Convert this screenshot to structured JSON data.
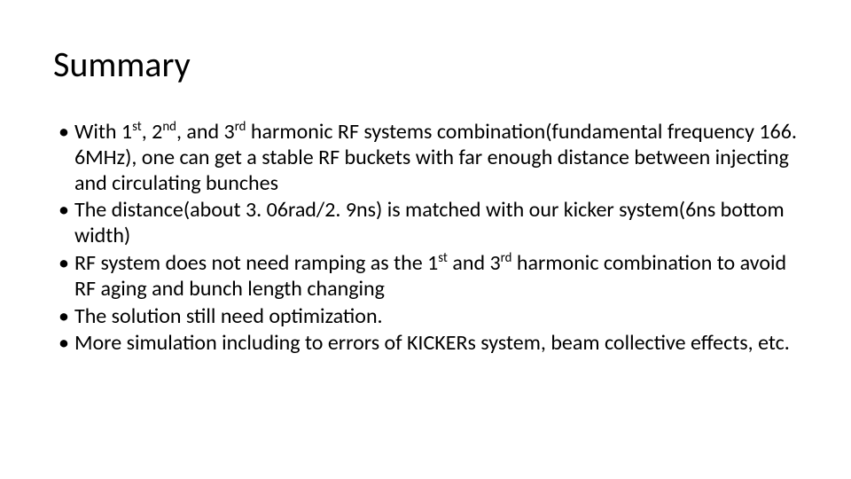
{
  "title": "Summary",
  "bullets": [
    {
      "pre1": "With 1",
      "sup1": "st",
      "mid1": ", 2",
      "sup2": "nd",
      "mid2": ", and 3",
      "sup3": "rd",
      "post": " harmonic RF systems combination(fundamental frequency 166. 6MHz), one can get a stable RF buckets with far enough distance  between injecting and circulating bunches"
    },
    {
      "text": "The distance(about 3. 06rad/2. 9ns) is matched with our kicker system(6ns bottom  width)"
    },
    {
      "pre1": "RF system does not need ramping as the 1",
      "sup1": "st",
      "mid1": " and 3",
      "sup2": "rd",
      "post": " harmonic combination to avoid RF aging and bunch length changing"
    },
    {
      "text": "The solution still need optimization."
    },
    {
      "text": "More simulation including to errors of KICKERs system, beam collective effects, etc."
    }
  ],
  "colors": {
    "background": "#ffffff",
    "text": "#000000"
  },
  "typography": {
    "title_fontsize": 40,
    "title_weight": 300,
    "body_fontsize": 24,
    "font_family": "Calibri"
  }
}
